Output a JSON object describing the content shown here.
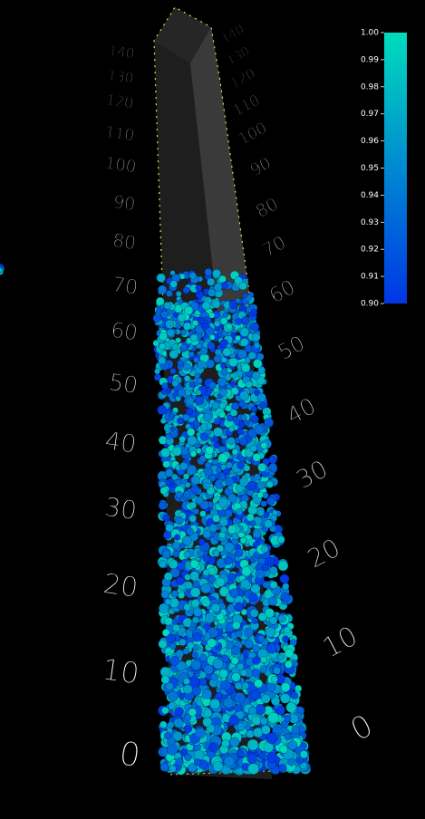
{
  "left_axis": {
    "labels": [
      "0",
      "10",
      "20",
      "30",
      "40",
      "50",
      "60",
      "70",
      "80",
      "90",
      "100",
      "110",
      "120",
      "130",
      "140"
    ]
  },
  "right_axis": {
    "labels": [
      "0",
      "10",
      "20",
      "30",
      "40",
      "50",
      "60",
      "70",
      "80",
      "90",
      "100",
      "110",
      "120",
      "130",
      "140"
    ]
  },
  "colorbar": {
    "lim": [
      0.9,
      1.0
    ],
    "color_low": "#0036e6",
    "color_high": "#00dcbc",
    "ticks": [
      {
        "value": 1.0,
        "label": "1.00"
      },
      {
        "value": 0.99,
        "label": "0.99"
      },
      {
        "value": 0.98,
        "label": "0.98"
      },
      {
        "value": 0.97,
        "label": "0.97"
      },
      {
        "value": 0.96,
        "label": "0.96"
      },
      {
        "value": 0.95,
        "label": "0.95"
      },
      {
        "value": 0.94,
        "label": "0.94"
      },
      {
        "value": 0.93,
        "label": "0.93"
      },
      {
        "value": 0.92,
        "label": "0.92"
      },
      {
        "value": 0.91,
        "label": "0.91"
      },
      {
        "value": 0.9,
        "label": "0.90"
      }
    ]
  }
}
